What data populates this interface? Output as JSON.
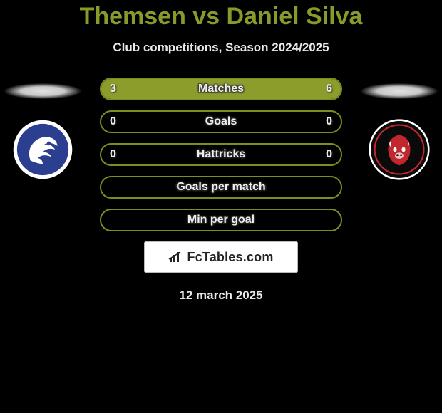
{
  "header": {
    "title": "Themsen vs Daniel Silva",
    "subtitle": "Club competitions, Season 2024/2025",
    "title_color": "#8a9a2a"
  },
  "stats": {
    "bar_border_color": "#7d8d1f",
    "bar_fill_color": "#8d9d2c",
    "rows": [
      {
        "label": "Matches",
        "left": "3",
        "right": "6",
        "left_pct": 33,
        "right_pct": 67
      },
      {
        "label": "Goals",
        "left": "0",
        "right": "0",
        "left_pct": 0,
        "right_pct": 0
      },
      {
        "label": "Hattricks",
        "left": "0",
        "right": "0",
        "left_pct": 0,
        "right_pct": 0
      },
      {
        "label": "Goals per match",
        "left": "",
        "right": "",
        "left_pct": 0,
        "right_pct": 0
      },
      {
        "label": "Min per goal",
        "left": "",
        "right": "",
        "left_pct": 0,
        "right_pct": 0
      }
    ]
  },
  "clubs": {
    "left": {
      "name": "Randers FC",
      "badge_bg": "#ffffff",
      "badge_fg": "#2b3e8f"
    },
    "right": {
      "name": "FC Midtjylland",
      "badge_bg": "#0a0a0a",
      "badge_fg": "#c1272d"
    }
  },
  "footer": {
    "site_label": "FcTables.com",
    "date": "12 march 2025"
  }
}
